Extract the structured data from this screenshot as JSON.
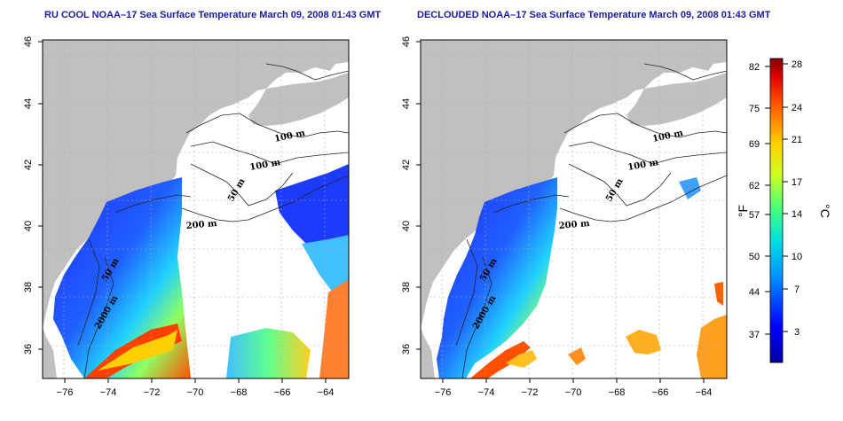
{
  "panels": [
    {
      "title": "RU COOL NOAA–17 Sea Surface Temperature March 09, 2008 01:43 GMT",
      "contour_labels": [
        "100 m",
        "100 m",
        "50 m",
        "200 m",
        "50 m",
        "2000 m"
      ]
    },
    {
      "title": "DECLOUDED NOAA–17 Sea Surface Temperature March 09, 2008 01:43 GMT",
      "contour_labels": [
        "100 m",
        "100 m",
        "50 m",
        "200 m",
        "50 m",
        "2000 m"
      ]
    }
  ],
  "axes": {
    "lon_ticks": [
      "−76",
      "−74",
      "−72",
      "−70",
      "−68",
      "−66",
      "−64"
    ],
    "lat_ticks": [
      "46",
      "44",
      "42",
      "40",
      "38",
      "36"
    ]
  },
  "colorbar": {
    "fahrenheit_ticks": [
      "82",
      "75",
      "69",
      "62",
      "57",
      "50",
      "44",
      "37"
    ],
    "celsius_ticks": [
      "28",
      "24",
      "21",
      "17",
      "14",
      "10",
      "7",
      "3"
    ],
    "unit_f": "°F",
    "unit_c": "°C"
  },
  "colors": {
    "land": "#c0c0c0",
    "title": "#1a1aa6",
    "cold": "#2222ff",
    "warm": "#ff4400"
  }
}
